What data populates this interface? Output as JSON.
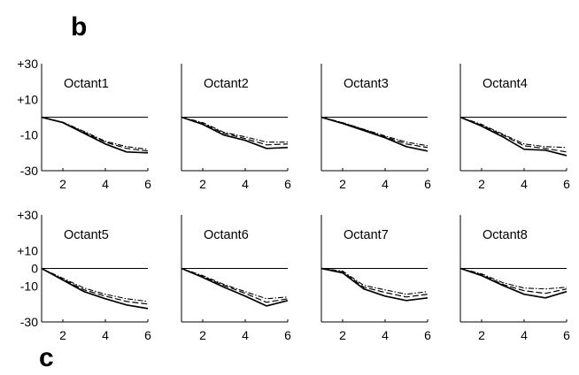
{
  "figure": {
    "panel_labels": [
      "b",
      "c"
    ]
  },
  "chart_data": {
    "type": "line",
    "layout": "2x4 small multiples",
    "x_ticks": [
      2,
      4,
      6
    ],
    "xlim": [
      1,
      6
    ],
    "ylim": [
      -30,
      30
    ],
    "row_y_ticks": [
      [
        "+30",
        "+10",
        "-10",
        "-30"
      ],
      [
        "+30",
        "+10",
        "0",
        "-10",
        "-30"
      ]
    ],
    "grid": false,
    "legend": "none",
    "x": [
      1,
      2,
      3,
      4,
      5,
      6
    ],
    "panels": [
      {
        "title": "Octant1",
        "series": [
          {
            "style": "solid",
            "values": [
              0,
              -3,
              -9,
              -15,
              -19.5,
              -20
            ]
          },
          {
            "style": "dashed",
            "values": [
              0,
              -3,
              -8.5,
              -14,
              -17.5,
              -19
            ]
          },
          {
            "style": "dashdot",
            "values": [
              0,
              -2.8,
              -8,
              -13.5,
              -16.5,
              -18
            ]
          }
        ]
      },
      {
        "title": "Octant2",
        "series": [
          {
            "style": "solid",
            "values": [
              0,
              -4,
              -10,
              -13,
              -17.5,
              -17
            ]
          },
          {
            "style": "dashed",
            "values": [
              0,
              -3.5,
              -9,
              -12,
              -15.5,
              -15
            ]
          },
          {
            "style": "dashdot",
            "values": [
              0,
              -3,
              -8.5,
              -11,
              -14,
              -14
            ]
          }
        ]
      },
      {
        "title": "Octant3",
        "series": [
          {
            "style": "solid",
            "values": [
              0,
              -3.5,
              -7.5,
              -11.5,
              -16.5,
              -19
            ]
          },
          {
            "style": "dashed",
            "values": [
              0,
              -3.2,
              -7,
              -11,
              -15,
              -17
            ]
          },
          {
            "style": "dashdot",
            "values": [
              0,
              -3,
              -6.8,
              -10.5,
              -14,
              -16
            ]
          }
        ]
      },
      {
        "title": "Octant4",
        "series": [
          {
            "style": "solid",
            "values": [
              0,
              -5,
              -11,
              -18,
              -18.5,
              -21.5
            ]
          },
          {
            "style": "dashed",
            "values": [
              0,
              -4.5,
              -10,
              -16,
              -17.5,
              -19.5
            ]
          },
          {
            "style": "dashdot",
            "values": [
              0,
              -4,
              -9.5,
              -15,
              -16.5,
              -17
            ]
          }
        ]
      },
      {
        "title": "Octant5",
        "series": [
          {
            "style": "solid",
            "values": [
              0,
              -6.5,
              -13,
              -17,
              -20.5,
              -22.5
            ]
          },
          {
            "style": "dashed",
            "values": [
              0,
              -6,
              -12,
              -15.5,
              -18.5,
              -20
            ]
          },
          {
            "style": "dashdot",
            "values": [
              0,
              -5.5,
              -11,
              -14.5,
              -17,
              -18.5
            ]
          }
        ]
      },
      {
        "title": "Octant6",
        "series": [
          {
            "style": "solid",
            "values": [
              0,
              -5,
              -10.5,
              -15.5,
              -21,
              -18
            ]
          },
          {
            "style": "dashed",
            "values": [
              0,
              -4.5,
              -9.5,
              -14,
              -19,
              -17
            ]
          },
          {
            "style": "dashdot",
            "values": [
              0,
              -4,
              -9,
              -13,
              -17,
              -16
            ]
          }
        ]
      },
      {
        "title": "Octant7",
        "series": [
          {
            "style": "solid",
            "values": [
              0,
              -2.5,
              -11.5,
              -15.5,
              -18,
              -16.5
            ]
          },
          {
            "style": "dashed",
            "values": [
              0,
              -2,
              -10.5,
              -13.5,
              -16,
              -14.5
            ]
          },
          {
            "style": "dashdot",
            "values": [
              0,
              -1.5,
              -9.5,
              -12,
              -14.5,
              -13
            ]
          }
        ]
      },
      {
        "title": "Octant8",
        "series": [
          {
            "style": "solid",
            "values": [
              0,
              -4,
              -9.5,
              -14.5,
              -16.5,
              -13
            ]
          },
          {
            "style": "dashed",
            "values": [
              0,
              -3.5,
              -9,
              -12.5,
              -14,
              -11.5
            ]
          },
          {
            "style": "dashdot",
            "values": [
              0,
              -3,
              -8,
              -11,
              -11.5,
              -10.5
            ]
          }
        ]
      }
    ]
  }
}
